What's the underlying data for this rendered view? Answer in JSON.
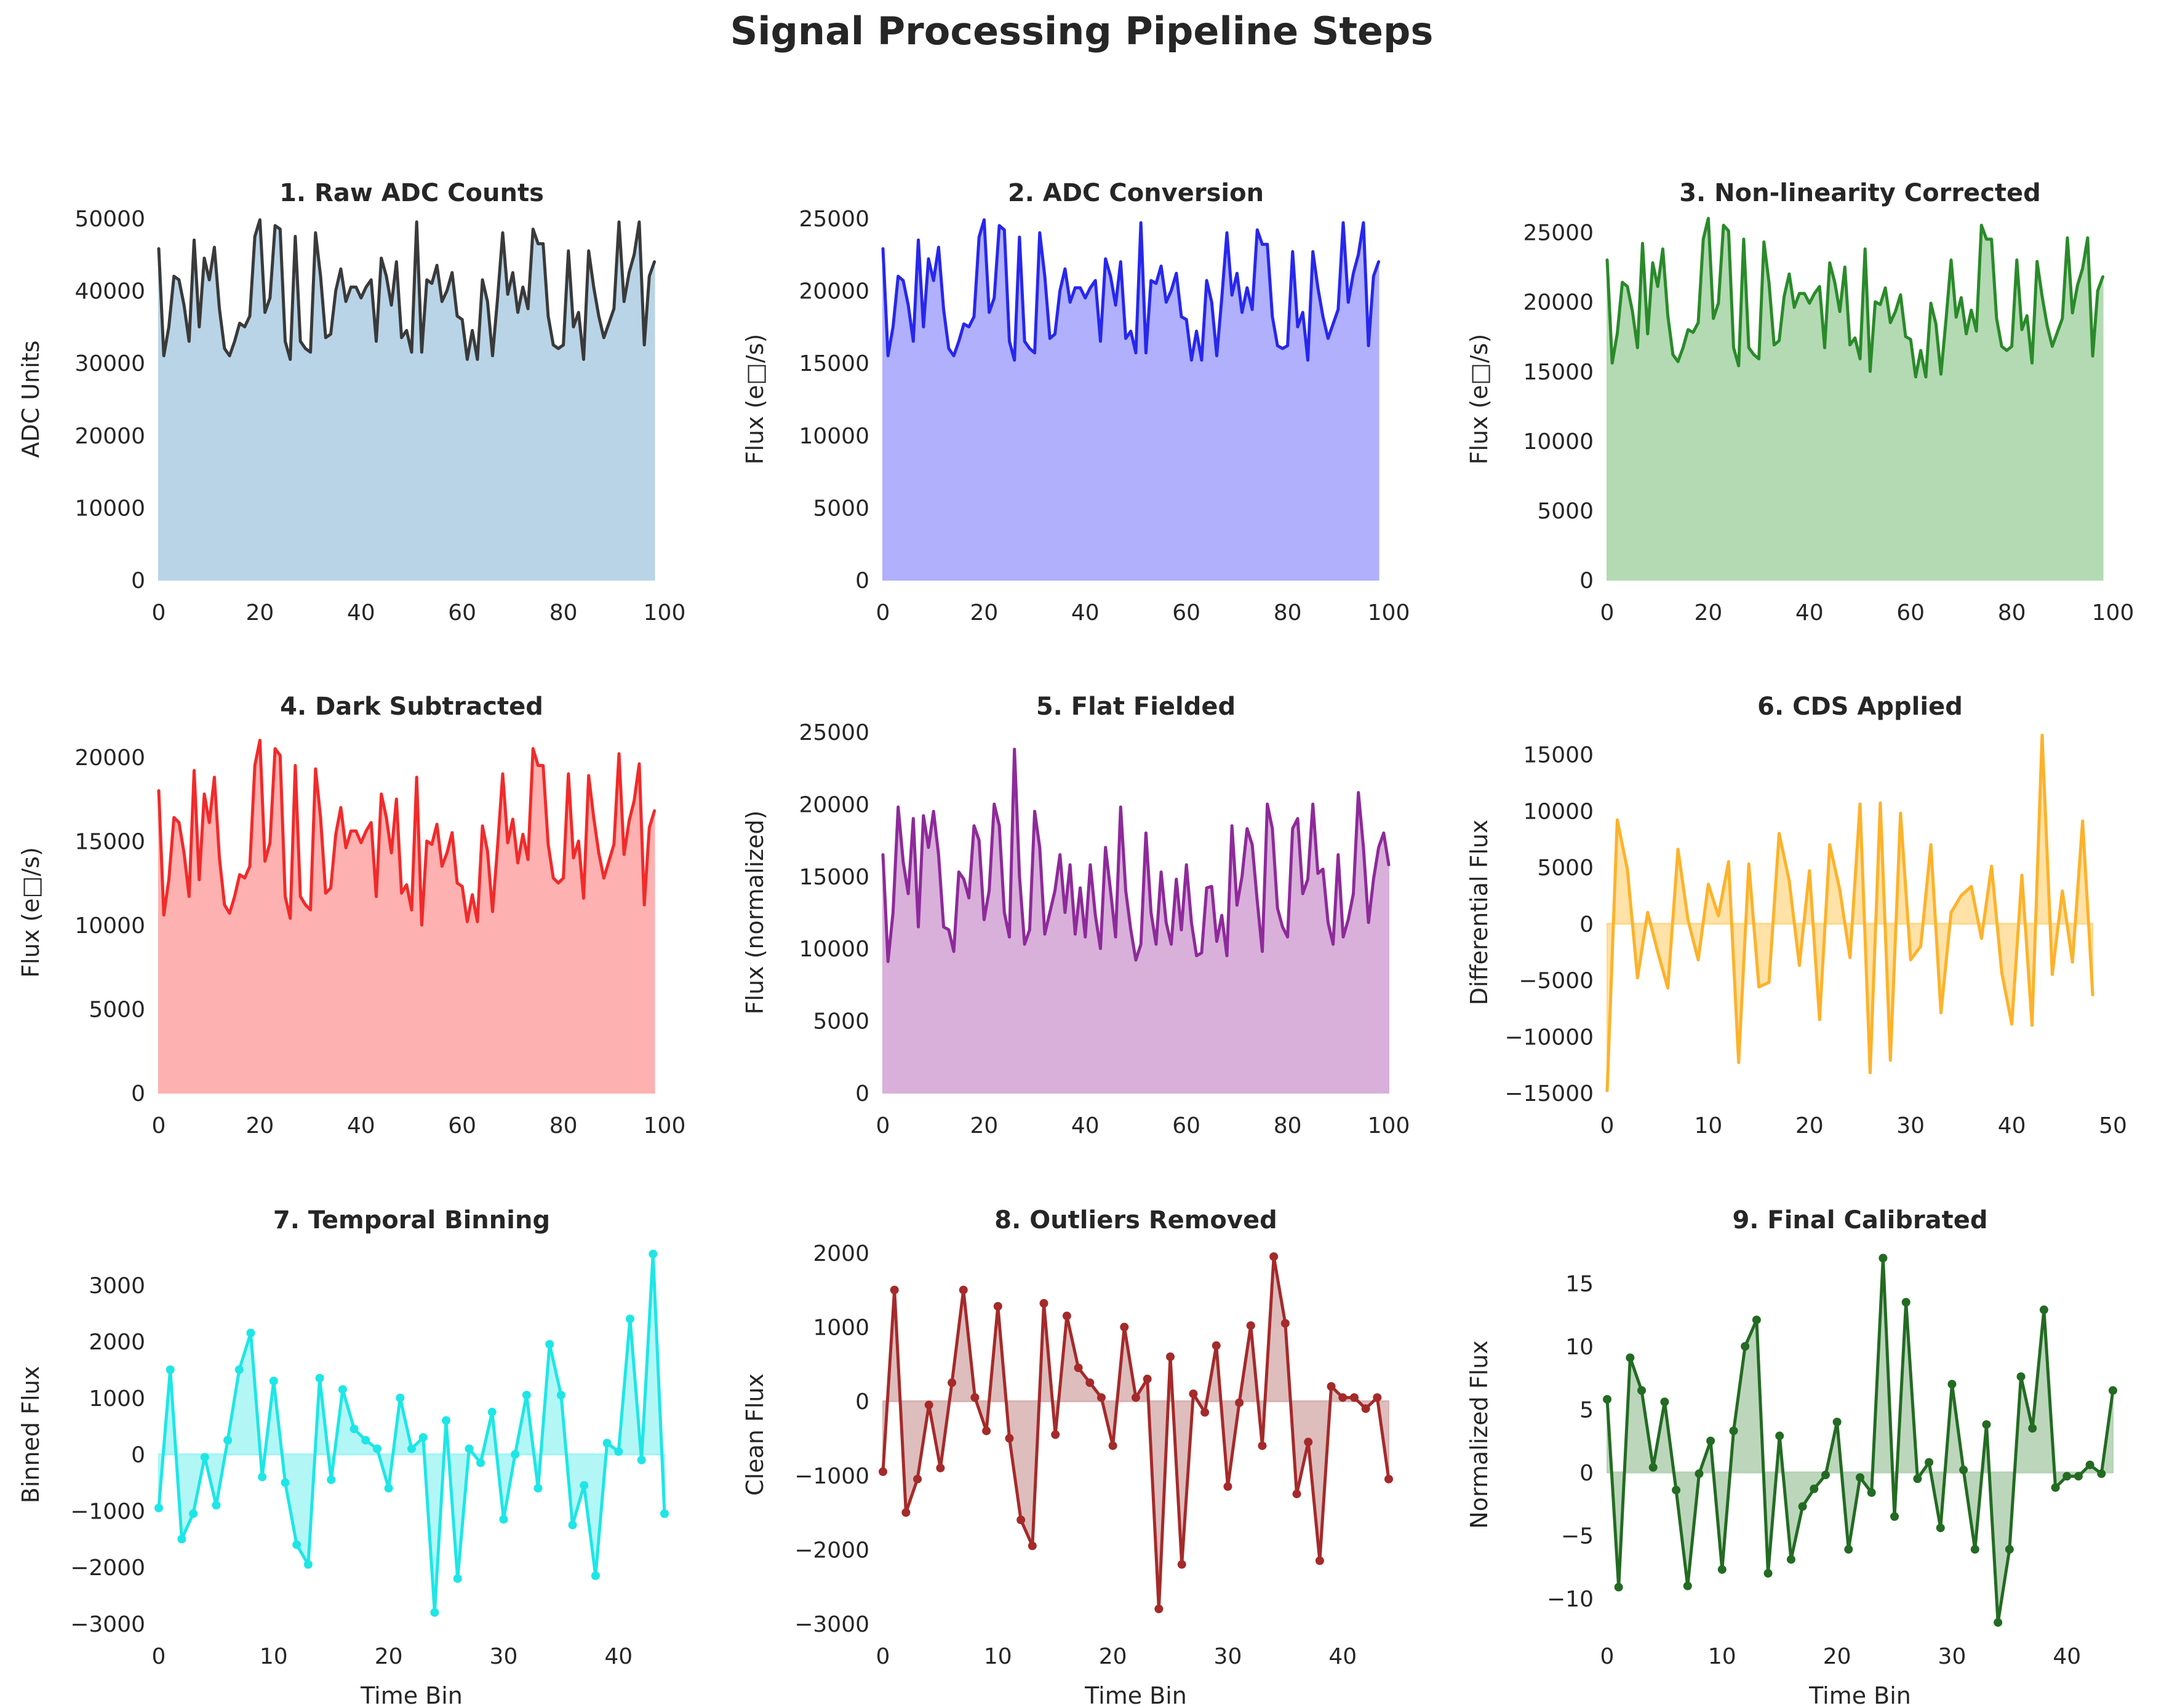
{
  "figure": {
    "title": "Signal Processing Pipeline Steps"
  },
  "chart_data": [
    {
      "type": "area",
      "title": "1. Raw ADC Counts",
      "xlabel": "",
      "ylabel": "ADC Units",
      "xlim": [
        0,
        100
      ],
      "ylim": [
        0,
        50000
      ],
      "xticks": [
        0,
        20,
        40,
        60,
        80,
        100
      ],
      "yticks": [
        0,
        10000,
        20000,
        30000,
        40000,
        50000
      ],
      "color": "#3a3a3a",
      "fill": "#b9d4e7",
      "fill_opacity": 1,
      "markers": false,
      "fill_baseline": 0,
      "series": [
        {
          "x_start": 0,
          "x_step": 1,
          "values": [
            45800,
            31000,
            35000,
            42000,
            41500,
            38000,
            33000,
            47000,
            35000,
            44500,
            41500,
            46000,
            37500,
            32000,
            31000,
            33000,
            35500,
            35000,
            36500,
            47500,
            49800,
            37000,
            39000,
            49000,
            48500,
            33000,
            30500,
            47500,
            33000,
            32000,
            31500,
            48000,
            42000,
            33500,
            34000,
            40000,
            43000,
            38500,
            40500,
            40500,
            39000,
            40500,
            41500,
            33000,
            44500,
            42000,
            38000,
            44000,
            33500,
            34500,
            31500,
            49500,
            31500,
            41500,
            41000,
            43500,
            38500,
            40000,
            42500,
            36500,
            36000,
            30500,
            34500,
            30500,
            41500,
            38500,
            31000,
            39000,
            48000,
            39500,
            42500,
            37000,
            40500,
            37500,
            48500,
            46500,
            46500,
            36500,
            32500,
            32000,
            32500,
            45500,
            35000,
            37000,
            30500,
            45500,
            40500,
            36500,
            33500,
            35500,
            37500,
            49500,
            38500,
            42500,
            45000,
            49500,
            32500,
            42000,
            44000
          ]
        }
      ]
    },
    {
      "type": "area",
      "title": "2. ADC Conversion",
      "xlabel": "",
      "ylabel": "Flux (e□/s)",
      "xlim": [
        0,
        100
      ],
      "ylim": [
        0,
        25000
      ],
      "xticks": [
        0,
        20,
        40,
        60,
        80,
        100
      ],
      "yticks": [
        0,
        5000,
        10000,
        15000,
        20000,
        25000
      ],
      "color": "#2727ee",
      "fill": "#b0b0fc",
      "fill_opacity": 1,
      "markers": false,
      "fill_baseline": 0,
      "series": [
        {
          "x_start": 0,
          "x_step": 1,
          "values": [
            22900,
            15500,
            17500,
            21000,
            20700,
            19000,
            16500,
            23500,
            17500,
            22200,
            20700,
            23000,
            18700,
            16000,
            15500,
            16500,
            17700,
            17500,
            18200,
            23700,
            24900,
            18500,
            19500,
            24500,
            24200,
            16500,
            15200,
            23700,
            16500,
            16000,
            15700,
            24000,
            21000,
            16700,
            17000,
            20000,
            21500,
            19200,
            20200,
            20200,
            19500,
            20200,
            20700,
            16500,
            22200,
            21000,
            19000,
            22000,
            16700,
            17200,
            15700,
            24700,
            15700,
            20700,
            20500,
            21700,
            19200,
            20000,
            21200,
            18200,
            18000,
            15200,
            17200,
            15200,
            20700,
            19200,
            15500,
            19500,
            24000,
            19700,
            21200,
            18500,
            20200,
            18700,
            24200,
            23200,
            23200,
            18200,
            16200,
            16000,
            16200,
            22700,
            17500,
            18500,
            15200,
            22700,
            20200,
            18200,
            16700,
            17700,
            18700,
            24700,
            19200,
            21200,
            22500,
            24700,
            16200,
            21000,
            22000
          ]
        }
      ]
    },
    {
      "type": "area",
      "title": "3. Non-linearity Corrected",
      "xlabel": "",
      "ylabel": "Flux (e□/s)",
      "xlim": [
        0,
        100
      ],
      "ylim": [
        0,
        26000
      ],
      "xticks": [
        0,
        20,
        40,
        60,
        80,
        100
      ],
      "yticks": [
        0,
        5000,
        10000,
        15000,
        20000,
        25000
      ],
      "color": "#2a8a2a",
      "fill": "#b3dab3",
      "fill_opacity": 1,
      "markers": false,
      "fill_baseline": 0,
      "series": [
        {
          "x_start": 0,
          "x_step": 1,
          "values": [
            23000,
            15600,
            17700,
            21400,
            21100,
            19300,
            16700,
            24200,
            17700,
            22800,
            21100,
            23800,
            19000,
            16200,
            15700,
            16700,
            18000,
            17800,
            18500,
            24500,
            26000,
            18800,
            19900,
            25500,
            25100,
            16700,
            15400,
            24500,
            16700,
            16200,
            15900,
            24300,
            21400,
            16900,
            17200,
            20400,
            22000,
            19600,
            20600,
            20600,
            19900,
            20600,
            21100,
            16700,
            22800,
            21400,
            19300,
            22500,
            16900,
            17400,
            15900,
            23800,
            15000,
            20000,
            19800,
            21000,
            18500,
            19300,
            20500,
            17500,
            17300,
            14600,
            16500,
            14600,
            19900,
            18400,
            14800,
            18700,
            23000,
            18900,
            20300,
            17700,
            19400,
            17900,
            25500,
            24500,
            24500,
            18800,
            16800,
            16500,
            16800,
            23000,
            18000,
            19000,
            15600,
            22900,
            20400,
            18300,
            16800,
            17800,
            18800,
            24600,
            19200,
            21200,
            22400,
            24600,
            16100,
            20800,
            21800
          ]
        }
      ]
    },
    {
      "type": "area",
      "title": "4. Dark Subtracted",
      "xlabel": "",
      "ylabel": "Flux (e□/s)",
      "xlim": [
        0,
        100
      ],
      "ylim": [
        0,
        21500
      ],
      "xticks": [
        0,
        20,
        40,
        60,
        80,
        100
      ],
      "yticks": [
        0,
        5000,
        10000,
        15000,
        20000
      ],
      "color": "#f22a2a",
      "fill": "#fdb1b1",
      "fill_opacity": 1,
      "markers": false,
      "fill_baseline": 0,
      "series": [
        {
          "x_start": 0,
          "x_step": 1,
          "values": [
            18000,
            10600,
            12700,
            16400,
            16100,
            14300,
            11700,
            19200,
            12700,
            17800,
            16100,
            18800,
            14000,
            11200,
            10700,
            11700,
            13000,
            12800,
            13500,
            19500,
            21000,
            13800,
            14900,
            20500,
            20100,
            11700,
            10400,
            19500,
            11700,
            11200,
            10900,
            19300,
            16400,
            11900,
            12200,
            15400,
            17000,
            14600,
            15600,
            15600,
            14900,
            15600,
            16100,
            11700,
            17800,
            16400,
            14300,
            17500,
            11900,
            12400,
            10900,
            18800,
            10000,
            15000,
            14800,
            16000,
            13500,
            14300,
            15500,
            12500,
            12300,
            10200,
            11800,
            10200,
            15900,
            14400,
            10800,
            14700,
            19000,
            14900,
            16300,
            13700,
            15400,
            13900,
            20500,
            19500,
            19500,
            14800,
            12800,
            12500,
            12800,
            19000,
            14000,
            15000,
            11600,
            18900,
            16400,
            14300,
            12800,
            13800,
            14800,
            20200,
            14200,
            16200,
            17400,
            19600,
            11200,
            15800,
            16800
          ]
        }
      ]
    },
    {
      "type": "area",
      "title": "5. Flat Fielded",
      "xlabel": "",
      "ylabel": "Flux (normalized)",
      "xlim": [
        0,
        100
      ],
      "ylim": [
        0,
        25000
      ],
      "xticks": [
        0,
        20,
        40,
        60,
        80,
        100
      ],
      "yticks": [
        0,
        5000,
        10000,
        15000,
        20000,
        25000
      ],
      "color": "#8e2a9a",
      "fill": "#d8b0da",
      "fill_opacity": 1,
      "markers": false,
      "fill_baseline": 0,
      "series": [
        {
          "x_start": 0,
          "x_step": 1,
          "values": [
            16500,
            9100,
            12500,
            19800,
            16000,
            13800,
            19000,
            11500,
            19200,
            17000,
            19500,
            16500,
            11500,
            11300,
            9800,
            15300,
            14800,
            13500,
            18500,
            17500,
            12000,
            14000,
            20000,
            18500,
            12500,
            10800,
            23800,
            15000,
            10300,
            11300,
            19500,
            17000,
            11000,
            12500,
            14000,
            16500,
            12500,
            15800,
            11000,
            14200,
            10800,
            15800,
            12300,
            10000,
            17000,
            14000,
            10800,
            19800,
            14000,
            11300,
            9200,
            10300,
            18000,
            12500,
            10300,
            15300,
            11800,
            10300,
            14800,
            11300,
            15800,
            11800,
            9500,
            9700,
            14200,
            14300,
            10500,
            12300,
            9500,
            18500,
            13000,
            15000,
            18300,
            17200,
            13300,
            9800,
            20000,
            18300,
            12800,
            11500,
            10800,
            18300,
            19000,
            13800,
            14800,
            20000,
            15200,
            15500,
            11800,
            10300,
            16500,
            10800,
            12000,
            13800,
            20800,
            17000,
            11800,
            14800,
            17000,
            18000,
            15800
          ]
        }
      ]
    },
    {
      "type": "area",
      "title": "6. CDS Applied",
      "xlabel": "",
      "ylabel": "Differential Flux",
      "xlim": [
        0,
        50
      ],
      "ylim": [
        -15000,
        17000
      ],
      "xticks": [
        0,
        10,
        20,
        30,
        40,
        50
      ],
      "yticks": [
        -15000,
        -10000,
        -5000,
        0,
        5000,
        10000,
        15000
      ],
      "color": "#fdb22a",
      "fill": "#fdd88a",
      "fill_opacity": 0.75,
      "markers": false,
      "fill_baseline": 0,
      "series": [
        {
          "x_start": 0,
          "x_step": 1,
          "values": [
            -14800,
            9200,
            4800,
            -4800,
            1000,
            -2500,
            -5700,
            6600,
            300,
            -3200,
            3500,
            700,
            5500,
            -12300,
            5300,
            -5600,
            -5200,
            8000,
            3800,
            -3700,
            4700,
            -8500,
            7000,
            3000,
            -3000,
            10600,
            -13200,
            10700,
            -12100,
            9800,
            -3200,
            -2000,
            7000,
            -7900,
            1000,
            2500,
            3300,
            -1300,
            5100,
            -4300,
            -8900,
            4300,
            -9000,
            16700,
            -4500,
            2900,
            -3400,
            9100,
            -6300
          ]
        }
      ]
    },
    {
      "type": "area",
      "title": "7. Temporal Binning",
      "xlabel": "Time Bin",
      "ylabel": "Binned Flux",
      "xlim": [
        0,
        44
      ],
      "ylim": [
        -3000,
        3700
      ],
      "xticks": [
        0,
        10,
        20,
        30,
        40
      ],
      "yticks": [
        -3000,
        -2000,
        -1000,
        0,
        1000,
        2000,
        3000
      ],
      "color": "#1ee6e6",
      "fill": "#a0f4f4",
      "fill_opacity": 0.8,
      "markers": true,
      "fill_baseline": 0,
      "series": [
        {
          "x_start": 0,
          "x_step": 1,
          "values": [
            -950,
            1500,
            -1500,
            -1050,
            -50,
            -900,
            250,
            1500,
            2150,
            -400,
            1300,
            -500,
            -1600,
            -1950,
            1350,
            -450,
            1150,
            450,
            250,
            100,
            -600,
            1000,
            100,
            300,
            -2800,
            600,
            -2200,
            100,
            -150,
            750,
            -1150,
            0,
            1050,
            -600,
            1950,
            1050,
            -1250,
            -550,
            -2150,
            200,
            50,
            2400,
            -100,
            3550,
            -1050
          ]
        }
      ]
    },
    {
      "type": "area",
      "title": "8. Outliers Removed",
      "xlabel": "Time Bin",
      "ylabel": "Clean Flux",
      "xlim": [
        0,
        44
      ],
      "ylim": [
        -3000,
        2100
      ],
      "xticks": [
        0,
        10,
        20,
        30,
        40
      ],
      "yticks": [
        -3000,
        -2000,
        -1000,
        0,
        1000,
        2000
      ],
      "color": "#a52a2a",
      "fill": "#d8b2b2",
      "fill_opacity": 0.85,
      "markers": true,
      "fill_baseline": 0,
      "series": [
        {
          "x_start": 0,
          "x_step": 1,
          "values": [
            -950,
            1500,
            -1500,
            -1050,
            -50,
            -900,
            250,
            1500,
            50,
            -400,
            1280,
            -500,
            -1600,
            -1950,
            1320,
            -450,
            1150,
            450,
            250,
            50,
            -600,
            1000,
            50,
            300,
            -2800,
            600,
            -2200,
            100,
            -150,
            750,
            -1150,
            -20,
            1020,
            -600,
            1950,
            1050,
            -1250,
            -550,
            -2150,
            200,
            50,
            50,
            -100,
            50,
            -1050
          ]
        }
      ]
    },
    {
      "type": "area",
      "title": "9. Final Calibrated",
      "xlabel": "Time Bin",
      "ylabel": "Normalized Flux",
      "xlim": [
        0,
        44
      ],
      "ylim": [
        -12,
        18
      ],
      "xticks": [
        0,
        10,
        20,
        30,
        40
      ],
      "yticks": [
        -10,
        -5,
        0,
        5,
        10,
        15
      ],
      "color": "#236b23",
      "fill": "#b5d2b5",
      "fill_opacity": 0.9,
      "title_color": "#006400",
      "markers": true,
      "fill_baseline": 0,
      "series": [
        {
          "x_start": 0,
          "x_step": 1,
          "values": [
            5.8,
            -9.1,
            9.1,
            6.5,
            0.4,
            5.6,
            -1.4,
            -9.0,
            -0.1,
            2.5,
            -7.7,
            3.3,
            10.0,
            12.1,
            -8.0,
            2.9,
            -6.9,
            -2.7,
            -1.3,
            -0.2,
            4.0,
            -6.1,
            -0.4,
            -1.6,
            17.0,
            -3.5,
            13.5,
            -0.5,
            0.8,
            -4.4,
            7.0,
            0.2,
            -6.1,
            3.8,
            -11.9,
            -6.1,
            7.6,
            3.5,
            12.9,
            -1.2,
            -0.3,
            -0.3,
            0.6,
            -0.1,
            6.5
          ]
        }
      ]
    }
  ]
}
